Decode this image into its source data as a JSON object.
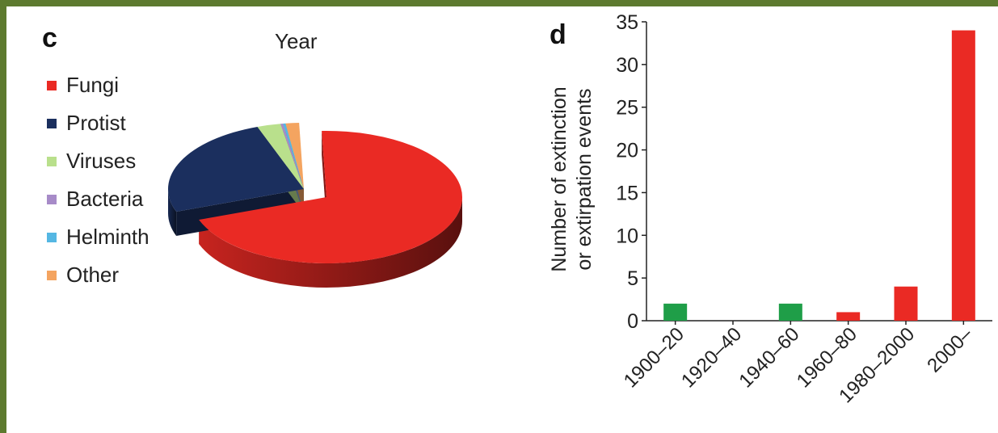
{
  "panel_c": {
    "letter": "c",
    "pie_title": "Year"
  },
  "panel_d": {
    "letter": "d"
  },
  "chart_data": [
    {
      "type": "pie",
      "title": "Year",
      "legend_position": "left",
      "labels": [
        "Fungi",
        "Protist",
        "Viruses",
        "Bacteria",
        "Helminth",
        "Other"
      ],
      "values": [
        70.0,
        25.0,
        2.8,
        0.3,
        0.3,
        1.6
      ],
      "colors": [
        "#ea2a24",
        "#1b2f5e",
        "#b9e08c",
        "#a78bc8",
        "#55b7e3",
        "#f4a460"
      ]
    },
    {
      "type": "bar",
      "categories": [
        "1900–20",
        "1920–40",
        "1940–60",
        "1960–80",
        "1980–2000",
        "2000–"
      ],
      "values": [
        2,
        0,
        2,
        1,
        4,
        34
      ],
      "colors": [
        "#1f9e48",
        "#1f9e48",
        "#1f9e48",
        "#ea2a24",
        "#ea2a24",
        "#ea2a24"
      ],
      "ylabel_line1": "Number of extinction",
      "ylabel_line2": "or extirpation events",
      "ylim": [
        0,
        35
      ],
      "yticks": [
        0,
        5,
        10,
        15,
        20,
        25,
        30,
        35
      ],
      "grid": false
    }
  ]
}
